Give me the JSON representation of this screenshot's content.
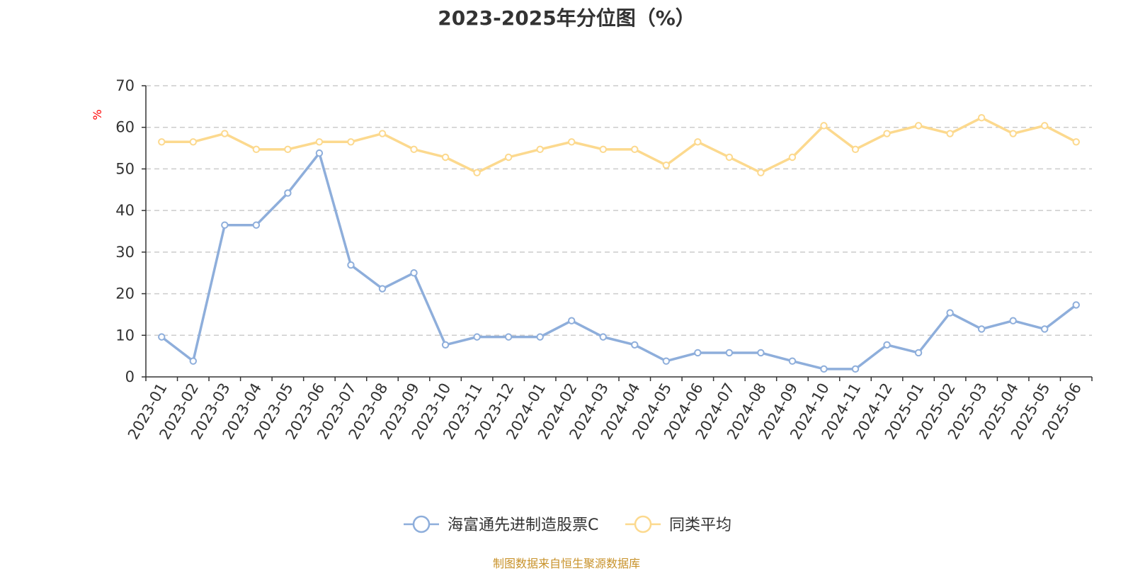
{
  "title": "2023-2025年分位图（%）",
  "source": "制图数据来自恒生聚源数据库",
  "colors": {
    "series1": "#8eaedb",
    "series2": "#fcd98e",
    "unit": "#ff0000",
    "grid": "#cccccc",
    "axis": "#333333"
  },
  "chart_data": {
    "type": "line",
    "ylabel": "%",
    "ylim": [
      0,
      70
    ],
    "yticks": [
      0,
      10,
      20,
      30,
      40,
      50,
      60,
      70
    ],
    "grid": "horizontal dashed",
    "legend_position": "bottom",
    "x": [
      "2023-01",
      "2023-02",
      "2023-03",
      "2023-04",
      "2023-05",
      "2023-06",
      "2023-07",
      "2023-08",
      "2023-09",
      "2023-10",
      "2023-11",
      "2023-12",
      "2024-01",
      "2024-02",
      "2024-03",
      "2024-04",
      "2024-05",
      "2024-06",
      "2024-07",
      "2024-08",
      "2024-09",
      "2024-10",
      "2024-11",
      "2024-12",
      "2025-01",
      "2025-02",
      "2025-03",
      "2025-04",
      "2025-05",
      "2025-06"
    ],
    "series": [
      {
        "name": "海富通先进制造股票C",
        "values": [
          9.6,
          3.8,
          36.5,
          36.5,
          44.2,
          53.8,
          26.9,
          21.2,
          25.0,
          7.7,
          9.6,
          9.6,
          9.6,
          13.5,
          9.6,
          7.7,
          3.8,
          5.8,
          5.8,
          5.8,
          3.8,
          1.9,
          1.9,
          7.7,
          5.8,
          15.4,
          11.5,
          13.5,
          11.5,
          17.3
        ]
      },
      {
        "name": "同类平均",
        "values": [
          56.5,
          56.5,
          58.5,
          54.7,
          54.7,
          56.5,
          56.5,
          58.5,
          54.7,
          52.8,
          49.1,
          52.8,
          54.7,
          56.5,
          54.7,
          54.7,
          50.9,
          56.5,
          52.8,
          49.1,
          52.8,
          60.4,
          54.7,
          58.5,
          60.4,
          58.5,
          62.3,
          58.5,
          60.4,
          56.5
        ]
      }
    ]
  }
}
